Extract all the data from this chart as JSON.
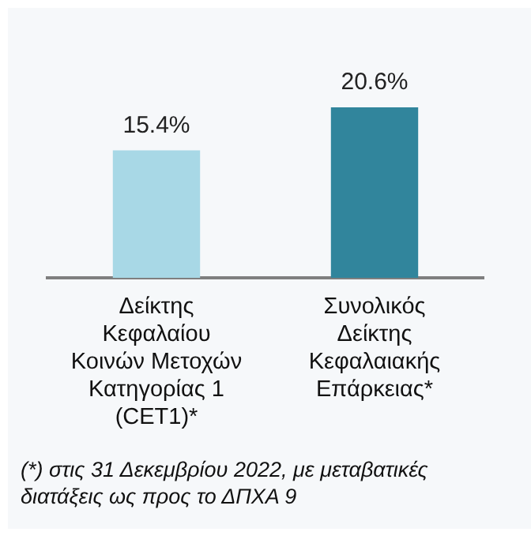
{
  "chart_data": {
    "type": "bar",
    "categories": [
      "Δείκτης Κεφαλαίου Κοινών Μετοχών Κατηγορίας 1 (CET1)*",
      "Συνολικός Δείκτης Κεφαλαιακής Επάρκειας*"
    ],
    "values": [
      15.4,
      20.6
    ],
    "value_labels": [
      "15.4%",
      "20.6%"
    ],
    "colors": [
      "#a8d8e6",
      "#31859c"
    ],
    "tick_labels": "x",
    "grid": false,
    "legend": false,
    "annotations": [
      "(*) στις 31 Δεκεμβρίου 2022, με μεταβατικές διατάξεις ως προς το ΔΠΧΑ 9"
    ]
  }
}
